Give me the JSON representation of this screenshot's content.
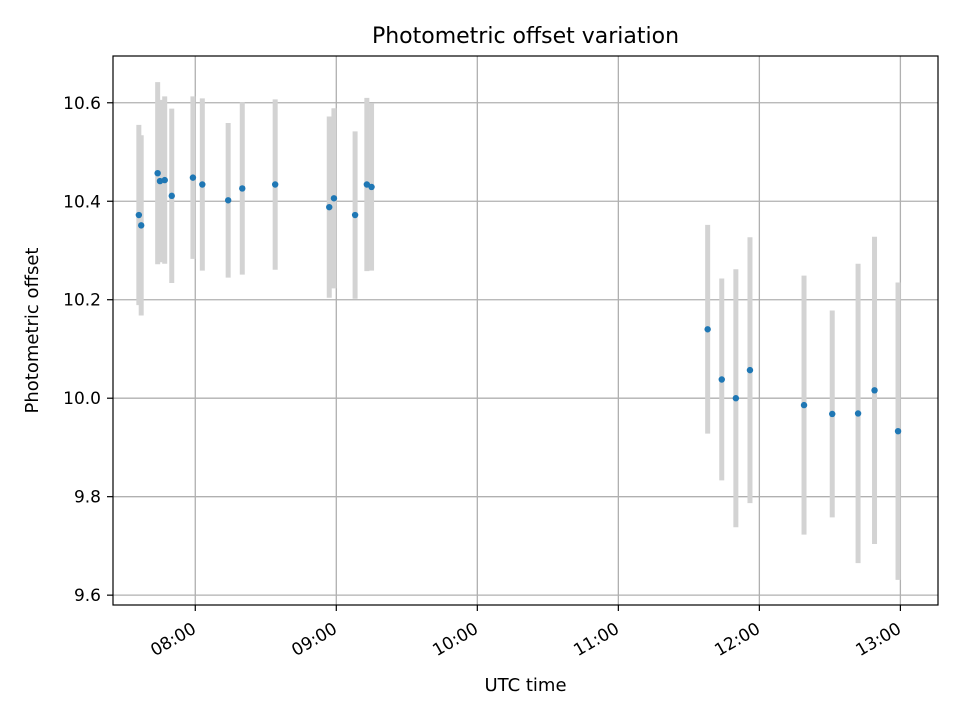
{
  "chart_data": {
    "type": "scatter",
    "title": "Photometric offset variation",
    "xlabel": "UTC time",
    "ylabel": "Photometric offset",
    "x_axis_type": "time",
    "xlim": [
      "07:25",
      "13:16"
    ],
    "ylim": [
      9.58,
      10.695
    ],
    "x_ticks": [
      "08:00",
      "09:00",
      "10:00",
      "11:00",
      "12:00",
      "13:00"
    ],
    "y_ticks": [
      9.6,
      9.8,
      10.0,
      10.2,
      10.4,
      10.6
    ],
    "grid": true,
    "legend": "none",
    "colors": {
      "point": "#1f77b4",
      "errorbar": "#d3d3d3",
      "grid": "#b0b0b0"
    },
    "points": [
      {
        "x": "07:36",
        "y": 10.372,
        "err": 0.183
      },
      {
        "x": "07:37",
        "y": 10.351,
        "err": 0.183
      },
      {
        "x": "07:44",
        "y": 10.457,
        "err": 0.185
      },
      {
        "x": "07:45",
        "y": 10.441,
        "err": 0.165
      },
      {
        "x": "07:47",
        "y": 10.443,
        "err": 0.17
      },
      {
        "x": "07:50",
        "y": 10.411,
        "err": 0.177
      },
      {
        "x": "07:59",
        "y": 10.448,
        "err": 0.165
      },
      {
        "x": "08:03",
        "y": 10.434,
        "err": 0.175
      },
      {
        "x": "08:14",
        "y": 10.402,
        "err": 0.157
      },
      {
        "x": "08:20",
        "y": 10.426,
        "err": 0.175
      },
      {
        "x": "08:34",
        "y": 10.434,
        "err": 0.173
      },
      {
        "x": "08:57",
        "y": 10.388,
        "err": 0.184
      },
      {
        "x": "08:59",
        "y": 10.406,
        "err": 0.183
      },
      {
        "x": "09:08",
        "y": 10.372,
        "err": 0.17
      },
      {
        "x": "09:13",
        "y": 10.434,
        "err": 0.176
      },
      {
        "x": "09:15",
        "y": 10.429,
        "err": 0.17
      },
      {
        "x": "11:38",
        "y": 10.14,
        "err": 0.212
      },
      {
        "x": "11:44",
        "y": 10.038,
        "err": 0.205
      },
      {
        "x": "11:50",
        "y": 10.0,
        "err": 0.262
      },
      {
        "x": "11:56",
        "y": 10.057,
        "err": 0.27
      },
      {
        "x": "12:19",
        "y": 9.986,
        "err": 0.263
      },
      {
        "x": "12:31",
        "y": 9.968,
        "err": 0.21
      },
      {
        "x": "12:42",
        "y": 9.969,
        "err": 0.304
      },
      {
        "x": "12:49",
        "y": 10.016,
        "err": 0.312
      },
      {
        "x": "12:59",
        "y": 9.933,
        "err": 0.302
      }
    ]
  }
}
